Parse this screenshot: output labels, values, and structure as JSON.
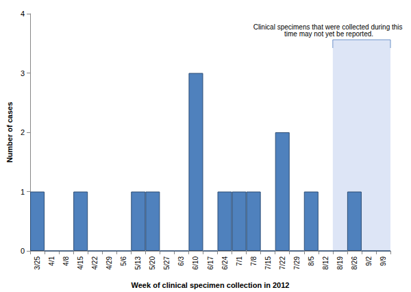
{
  "chart_data": {
    "type": "bar",
    "categories": [
      "3/25",
      "4/1",
      "4/8",
      "4/15",
      "4/22",
      "4/29",
      "5/6",
      "5/13",
      "5/20",
      "5/27",
      "6/3",
      "6/10",
      "6/17",
      "6/24",
      "7/1",
      "7/8",
      "7/15",
      "7/22",
      "7/29",
      "8/5",
      "8/12",
      "8/19",
      "8/26",
      "9/2",
      "9/9"
    ],
    "values": [
      1,
      0,
      0,
      1,
      0,
      0,
      0,
      1,
      1,
      0,
      0,
      3,
      0,
      1,
      1,
      1,
      0,
      2,
      0,
      1,
      0,
      0,
      1,
      0,
      0
    ],
    "color": "#4f81bd",
    "xlabel": "Week of clinical specimen collection in 2012",
    "ylabel": "Number of cases",
    "ylim": [
      0,
      4
    ],
    "yticks": [
      0,
      1,
      2,
      3,
      4
    ],
    "grid": false,
    "annotations": [
      {
        "text": "Clinical specimens that were collected during this time may not yet be reported.",
        "x_from": "8/19",
        "x_to": "9/9"
      }
    ]
  }
}
